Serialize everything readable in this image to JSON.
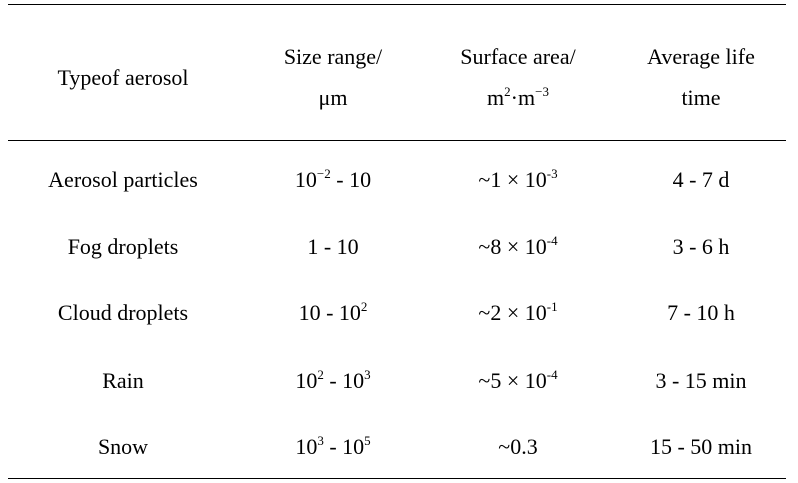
{
  "table": {
    "headers": {
      "col1": "Typeof aerosol",
      "col2_line1": "Size range/",
      "col2_line2": "μm",
      "col3_line1": "Surface area/",
      "col3_line2": {
        "base1": "m",
        "exp1": "2",
        "mid": "·m",
        "exp2": "−3"
      },
      "col4_line1": "Average life",
      "col4_line2": "time"
    },
    "rows": [
      {
        "type": "Aerosol particles",
        "size": {
          "a_base": "10",
          "a_exp": "−2",
          "sep": " - 10",
          "b_base": "",
          "b_exp": ""
        },
        "area": {
          "prefix": "~1 × 10",
          "exp": "-3"
        },
        "life": "4 - 7 d"
      },
      {
        "type": "Fog droplets",
        "size": {
          "a_base": "1 - 10",
          "a_exp": "",
          "sep": "",
          "b_base": "",
          "b_exp": ""
        },
        "area": {
          "prefix": "~8 × 10",
          "exp": "-4"
        },
        "life": "3 - 6 h"
      },
      {
        "type": "Cloud droplets",
        "size": {
          "a_base": "10 - 10",
          "a_exp": "2",
          "sep": "",
          "b_base": "",
          "b_exp": ""
        },
        "area": {
          "prefix": "~2 × 10",
          "exp": "-1"
        },
        "life": "7 - 10 h"
      },
      {
        "type": "Rain",
        "size": {
          "a_base": "10",
          "a_exp": "2",
          "sep": " - ",
          "b_base": "10",
          "b_exp": "3"
        },
        "area": {
          "prefix": "~5 × 10",
          "exp": "-4"
        },
        "life": "3 - 15 min"
      },
      {
        "type": "Snow",
        "size": {
          "a_base": "10",
          "a_exp": "3",
          "sep": " - ",
          "b_base": "10",
          "b_exp": "5"
        },
        "area": {
          "prefix": "~0.3",
          "exp": ""
        },
        "life": "15 - 50 min"
      }
    ]
  }
}
